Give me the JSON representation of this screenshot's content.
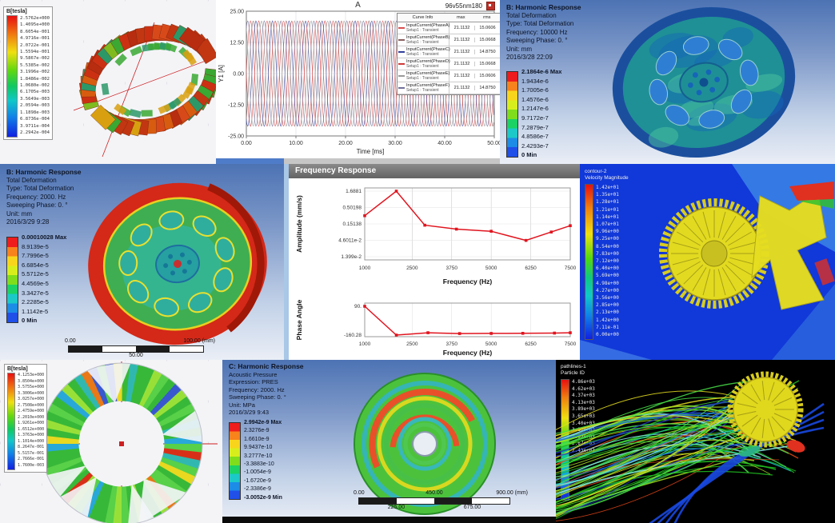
{
  "colors": {
    "ansys_bands": [
      "#ee1c1c",
      "#f8821c",
      "#f8d51c",
      "#d8ee1c",
      "#7fdd1c",
      "#1cd264",
      "#1cc8c8",
      "#1c8ce6",
      "#2050e8"
    ],
    "series": [
      "#d94f4f",
      "#8a5f5f",
      "#31409b",
      "#cf3a3a",
      "#9a9a9a",
      "#70709a"
    ],
    "curve_red": "#e0141e"
  },
  "maxwell_torus": {
    "legend_title": "B[tesla]",
    "legend_values": [
      "2.5762e+000",
      "1.4095e+000",
      "8.6054e-001",
      "4.9716e-001",
      "2.0722e-001",
      "1.5594e-001",
      "9.5867e-002",
      "5.5385e-002",
      "3.1996e-002",
      "1.8486e-002",
      "1.0680e-002",
      "6.1705e-003",
      "3.5649e-003",
      "2.0594e-003",
      "1.1898e-003",
      "6.8736e-004",
      "3.9711e-004",
      "2.2942e-004"
    ]
  },
  "current_plot": {
    "window_title": "A",
    "model_label": "96v55nm180",
    "xlabel": "Time [ms]",
    "ylabel": "Y1 [A]",
    "yticks": [
      "25.00",
      "12.50",
      "0.00",
      "-12.50",
      "-25.00"
    ],
    "xticks": [
      "0.00",
      "10.00",
      "20.00",
      "30.00",
      "40.00",
      "50.00"
    ],
    "table": {
      "headers": [
        "Curve Info",
        "max",
        "rms"
      ],
      "rows": [
        {
          "curve": "InputCurrent(PhaseA)",
          "setup": "Setup1 : Transient",
          "max": "21.1132",
          "rms": "15.0606",
          "color": "#d94f4f"
        },
        {
          "curve": "InputCurrent(PhaseB)",
          "setup": "Setup1 : Transient",
          "max": "21.1132",
          "rms": "15.0668",
          "color": "#8a5f5f"
        },
        {
          "curve": "InputCurrent(PhaseC)",
          "setup": "Setup1 : Transient",
          "max": "21.1132",
          "rms": "14.8750",
          "color": "#31409b"
        },
        {
          "curve": "InputCurrent(PhaseD)",
          "setup": "Setup1 : Transient",
          "max": "21.1132",
          "rms": "15.0668",
          "color": "#cf3a3a"
        },
        {
          "curve": "InputCurrent(PhaseE)",
          "setup": "Setup1 : Transient",
          "max": "21.1132",
          "rms": "15.0606",
          "color": "#9a9a9a"
        },
        {
          "curve": "InputCurrent(PhaseF)",
          "setup": "Setup1 : Transient",
          "max": "21.1132",
          "rms": "14.8750",
          "color": "#70709a"
        }
      ]
    }
  },
  "harmonic_a": {
    "lines": [
      "B: Harmonic Response",
      "Total Deformation",
      "Type: Total Deformation",
      "Frequency: 10000 Hz",
      "Sweeping Phase: 0. °",
      "Unit: mm",
      "2016/3/28 22:09"
    ],
    "legend": [
      "2.1864e-6 Max",
      "1.9434e-6",
      "1.7005e-6",
      "1.4576e-6",
      "1.2147e-6",
      "9.7172e-7",
      "7.2879e-7",
      "4.8586e-7",
      "2.4293e-7",
      "0 Min"
    ]
  },
  "harmonic_b": {
    "lines": [
      "B: Harmonic Response",
      "Total Deformation",
      "Type: Total Deformation",
      "Frequency: 2000. Hz",
      "Sweeping Phase: 0. °",
      "Unit: mm",
      "2016/3/29 9:28"
    ],
    "legend": [
      "0.00010028 Max",
      "8.9139e-5",
      "7.7996e-5",
      "6.6854e-5",
      "5.5712e-5",
      "4.4569e-5",
      "3.3427e-5",
      "2.2285e-5",
      "1.1142e-5",
      "0 Min"
    ],
    "ruler": {
      "top_left": "0.00",
      "top_right": "100.00 (mm)",
      "bottom_center": "50.00"
    }
  },
  "frequency_response": {
    "title": "Frequency Response",
    "amplitude": {
      "ylabel": "Amplitude (mm/s)",
      "yticks": [
        "1.6881",
        "0.50198",
        "0.15138",
        "4.6011e-2",
        "1.399e-2"
      ],
      "xticks": [
        "1000",
        "2500",
        "3750",
        "5000",
        "6250",
        "7500"
      ],
      "xlabel": "Frequency (Hz)"
    },
    "phase": {
      "ylabel": "Phase Angle",
      "yticks": [
        "90.",
        "-160.28"
      ],
      "xticks": [
        "1000",
        "2500",
        "3750",
        "5000",
        "6250",
        "7500"
      ],
      "xlabel": "Frequency (Hz)"
    }
  },
  "cfd_contour": {
    "header": [
      "contour-2",
      "Velocity Magnitude"
    ],
    "legend": [
      "1.42e+01",
      "1.35e+01",
      "1.28e+01",
      "1.21e+01",
      "1.14e+01",
      "1.07e+01",
      "9.96e+00",
      "9.25e+00",
      "8.54e+00",
      "7.83e+00",
      "7.12e+00",
      "6.40e+00",
      "5.69e+00",
      "4.98e+00",
      "4.27e+00",
      "3.56e+00",
      "2.85e+00",
      "2.13e+00",
      "1.42e+00",
      "7.11e-01",
      "0.00e+00"
    ]
  },
  "maxwell_rotor": {
    "legend_title": "B[tesla]",
    "legend_values": [
      "4.1253e+000",
      "3.8504e+000",
      "3.5755e+000",
      "3.3006e+000",
      "3.0257e+000",
      "2.7508e+000",
      "2.4759e+000",
      "2.2010e+000",
      "1.9261e+000",
      "1.6512e+000",
      "1.3763e+000",
      "1.1014e+000",
      "8.2647e-001",
      "5.5157e-001",
      "2.7666e-001",
      "1.7600e-003"
    ]
  },
  "acoustic": {
    "lines": [
      "C: Harmonic Response",
      "Acoustic Pressure",
      "Expression: PRES",
      "Frequency: 2000. Hz",
      "Sweeping Phase: 0. °",
      "Unit: MPa",
      "2016/3/29 9:43"
    ],
    "legend": [
      "2.9942e-9 Max",
      "2.3276e-9",
      "1.6610e-9",
      "9.9437e-10",
      "3.2777e-10",
      "-3.3883e-10",
      "-1.0054e-9",
      "-1.6720e-9",
      "-2.3386e-9",
      "-3.0052e-9 Min"
    ],
    "ruler": {
      "top": [
        "0.00",
        "450.00",
        "900.00 (mm)"
      ],
      "bottom": [
        "225.00",
        "675.00"
      ]
    }
  },
  "pathlines": {
    "header": [
      "pathlines-1",
      "Particle ID"
    ],
    "legend": [
      "4.86e+03",
      "4.62e+03",
      "4.37e+03",
      "4.13e+03",
      "3.89e+03",
      "3.65e+03",
      "3.40e+03",
      "3.16e+03",
      "2.92e+03",
      "2.67e+03",
      "2.43e+03"
    ]
  },
  "chart_data": [
    {
      "type": "line",
      "title": "A",
      "subtitle": "96v55nm180",
      "xlabel": "Time [ms]",
      "ylabel": "Y1 [A]",
      "xlim": [
        0,
        50
      ],
      "ylim": [
        -25,
        25
      ],
      "grid": true,
      "legend_position": "right",
      "note": "six-phase sinusoidal input currents, Setup1 : Transient",
      "series": [
        {
          "name": "InputCurrent(PhaseA)",
          "amplitude": 21.1132,
          "rms": 15.0606,
          "period_ms": 3.333,
          "phase_deg": 0
        },
        {
          "name": "InputCurrent(PhaseB)",
          "amplitude": 21.1132,
          "rms": 15.0668,
          "period_ms": 3.333,
          "phase_deg": -60
        },
        {
          "name": "InputCurrent(PhaseC)",
          "amplitude": 21.1132,
          "rms": 14.875,
          "period_ms": 3.333,
          "phase_deg": -120
        },
        {
          "name": "InputCurrent(PhaseD)",
          "amplitude": 21.1132,
          "rms": 15.0668,
          "period_ms": 3.333,
          "phase_deg": -180
        },
        {
          "name": "InputCurrent(PhaseE)",
          "amplitude": 21.1132,
          "rms": 15.0606,
          "period_ms": 3.333,
          "phase_deg": -240
        },
        {
          "name": "InputCurrent(PhaseF)",
          "amplitude": 21.1132,
          "rms": 14.875,
          "period_ms": 3.333,
          "phase_deg": -300
        }
      ]
    },
    {
      "type": "line",
      "title": "Frequency Response - Amplitude",
      "xlabel": "Frequency (Hz)",
      "ylabel": "Amplitude (mm/s)",
      "y_scale": "log",
      "xlim": [
        1000,
        7500
      ],
      "ylim": [
        0.01399,
        1.6881
      ],
      "x_ticks": [
        1000,
        2500,
        3750,
        5000,
        6250,
        7500
      ],
      "y_ticks": [
        1.6881,
        0.50198,
        0.15138,
        0.046011,
        0.01399
      ],
      "x": [
        1000,
        2000,
        2900,
        3900,
        5000,
        6100,
        6900,
        7500
      ],
      "y": [
        0.28,
        1.6881,
        0.14,
        0.105,
        0.09,
        0.046,
        0.085,
        0.135
      ],
      "marker": "square"
    },
    {
      "type": "line",
      "title": "Frequency Response - Phase Angle",
      "xlabel": "Frequency (Hz)",
      "ylabel": "Phase Angle",
      "xlim": [
        1000,
        7500
      ],
      "ylim": [
        -160.28,
        90
      ],
      "x_ticks": [
        1000,
        2500,
        3750,
        5000,
        6250,
        7500
      ],
      "y_ticks": [
        90,
        -160.28
      ],
      "x": [
        1000,
        2000,
        3000,
        4000,
        5000,
        6000,
        7000,
        7500
      ],
      "y": [
        90,
        -160.28,
        -140,
        -147,
        -146,
        -145,
        -143,
        -140
      ],
      "marker": "square"
    }
  ]
}
